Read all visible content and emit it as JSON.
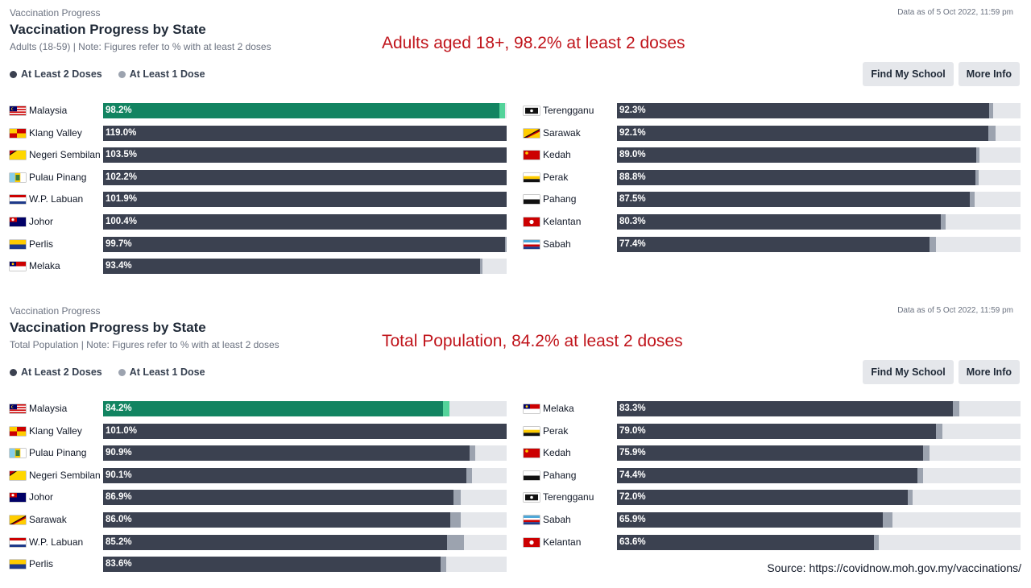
{
  "colors": {
    "dose2": "#3b4150",
    "dose1": "#9ca3af",
    "highlight_dose2": "#128461",
    "highlight_dose1": "#53d39a",
    "track": "#e5e7eb",
    "annotation": "#c0141b"
  },
  "panels": [
    {
      "eyebrow": "Vaccination Progress",
      "title": "Vaccination Progress by State",
      "subtitle": "Adults (18-59) | Note: Figures refer to % with at least 2 doses",
      "as_of": "Data as of 5 Oct 2022, 11:59 pm",
      "annotation": "Adults aged 18+, 98.2% at least 2 doses",
      "legend": [
        {
          "label": "At Least 2 Doses",
          "color": "#3b4150"
        },
        {
          "label": "At Least 1 Dose",
          "color": "#9ca3af"
        }
      ],
      "buttons": [
        {
          "label": "Find My School",
          "icon": "school-icon"
        },
        {
          "label": "More Info",
          "icon": "info-icon"
        }
      ]
    },
    {
      "eyebrow": "Vaccination Progress",
      "title": "Vaccination Progress by State",
      "subtitle": "Total Population | Note: Figures refer to % with at least 2 doses",
      "as_of": "Data as of 5 Oct 2022, 11:59 pm",
      "annotation": "Total Population, 84.2% at least 2 doses",
      "legend": [
        {
          "label": "At Least 2 Doses",
          "color": "#3b4150"
        },
        {
          "label": "At Least 1 Dose",
          "color": "#9ca3af"
        }
      ],
      "buttons": [
        {
          "label": "Find My School",
          "icon": "school-icon"
        },
        {
          "label": "More Info",
          "icon": "info-icon"
        }
      ]
    }
  ],
  "chart_data": [
    {
      "type": "bar",
      "orientation": "horizontal",
      "title": "Vaccination Progress by State",
      "subtitle": "Adults (18-59) | Note: Figures refer to % with at least 2 doses",
      "xlim": [
        0,
        100
      ],
      "series": [
        {
          "name": "At Least 2 Doses"
        },
        {
          "name": "At Least 1 Dose"
        }
      ],
      "columns": [
        [
          {
            "state": "Malaysia",
            "flag": "malaysia",
            "label": "98.2%",
            "dose2": 98.2,
            "dose1": 99.6,
            "highlight": true
          },
          {
            "state": "Klang Valley",
            "flag": "klang-valley",
            "label": "119.0%",
            "dose2": 119.0,
            "dose1": 119.5
          },
          {
            "state": "Negeri Sembilan",
            "flag": "negeri-sembilan",
            "label": "103.5%",
            "dose2": 103.5,
            "dose1": 104.0
          },
          {
            "state": "Pulau Pinang",
            "flag": "pulau-pinang",
            "label": "102.2%",
            "dose2": 102.2,
            "dose1": 102.8
          },
          {
            "state": "W.P. Labuan",
            "flag": "labuan",
            "label": "101.9%",
            "dose2": 101.9,
            "dose1": 102.9
          },
          {
            "state": "Johor",
            "flag": "johor",
            "label": "100.4%",
            "dose2": 100.4,
            "dose1": 101.0
          },
          {
            "state": "Perlis",
            "flag": "perlis",
            "label": "99.7%",
            "dose2": 99.7,
            "dose1": 100.1
          },
          {
            "state": "Melaka",
            "flag": "melaka",
            "label": "93.4%",
            "dose2": 93.4,
            "dose1": 94.1
          }
        ],
        [
          {
            "state": "Terengganu",
            "flag": "terengganu",
            "label": "92.3%",
            "dose2": 92.3,
            "dose1": 93.3
          },
          {
            "state": "Sarawak",
            "flag": "sarawak",
            "label": "92.1%",
            "dose2": 92.1,
            "dose1": 93.9
          },
          {
            "state": "Kedah",
            "flag": "kedah",
            "label": "89.0%",
            "dose2": 89.0,
            "dose1": 89.9
          },
          {
            "state": "Perak",
            "flag": "perak",
            "label": "88.8%",
            "dose2": 88.8,
            "dose1": 89.7
          },
          {
            "state": "Pahang",
            "flag": "pahang",
            "label": "87.5%",
            "dose2": 87.5,
            "dose1": 88.6
          },
          {
            "state": "Kelantan",
            "flag": "kelantan",
            "label": "80.3%",
            "dose2": 80.3,
            "dose1": 81.4
          },
          {
            "state": "Sabah",
            "flag": "sabah",
            "label": "77.4%",
            "dose2": 77.4,
            "dose1": 79.0
          }
        ]
      ]
    },
    {
      "type": "bar",
      "orientation": "horizontal",
      "title": "Vaccination Progress by State",
      "subtitle": "Total Population | Note: Figures refer to % with at least 2 doses",
      "xlim": [
        0,
        100
      ],
      "series": [
        {
          "name": "At Least 2 Doses"
        },
        {
          "name": "At Least 1 Dose"
        }
      ],
      "columns": [
        [
          {
            "state": "Malaysia",
            "flag": "malaysia",
            "label": "84.2%",
            "dose2": 84.2,
            "dose1": 85.8,
            "highlight": true
          },
          {
            "state": "Klang Valley",
            "flag": "klang-valley",
            "label": "101.0%",
            "dose2": 101.0,
            "dose1": 101.5
          },
          {
            "state": "Pulau Pinang",
            "flag": "pulau-pinang",
            "label": "90.9%",
            "dose2": 90.9,
            "dose1": 92.2
          },
          {
            "state": "Negeri Sembilan",
            "flag": "negeri-sembilan",
            "label": "90.1%",
            "dose2": 90.1,
            "dose1": 91.5
          },
          {
            "state": "Johor",
            "flag": "johor",
            "label": "86.9%",
            "dose2": 86.9,
            "dose1": 88.6
          },
          {
            "state": "Sarawak",
            "flag": "sarawak",
            "label": "86.0%",
            "dose2": 86.0,
            "dose1": 88.7
          },
          {
            "state": "W.P. Labuan",
            "flag": "labuan",
            "label": "85.2%",
            "dose2": 85.2,
            "dose1": 89.5
          },
          {
            "state": "Perlis",
            "flag": "perlis",
            "label": "83.6%",
            "dose2": 83.6,
            "dose1": 85.0
          }
        ],
        [
          {
            "state": "Melaka",
            "flag": "melaka",
            "label": "83.3%",
            "dose2": 83.3,
            "dose1": 84.8
          },
          {
            "state": "Perak",
            "flag": "perak",
            "label": "79.0%",
            "dose2": 79.0,
            "dose1": 80.6
          },
          {
            "state": "Kedah",
            "flag": "kedah",
            "label": "75.9%",
            "dose2": 75.9,
            "dose1": 77.4
          },
          {
            "state": "Pahang",
            "flag": "pahang",
            "label": "74.4%",
            "dose2": 74.4,
            "dose1": 75.9
          },
          {
            "state": "Terengganu",
            "flag": "terengganu",
            "label": "72.0%",
            "dose2": 72.0,
            "dose1": 73.3
          },
          {
            "state": "Sabah",
            "flag": "sabah",
            "label": "65.9%",
            "dose2": 65.9,
            "dose1": 68.3
          },
          {
            "state": "Kelantan",
            "flag": "kelantan",
            "label": "63.6%",
            "dose2": 63.6,
            "dose1": 64.8
          }
        ]
      ]
    }
  ],
  "footer": {
    "source": "Source:  https://covidnow.moh.gov.my/vaccinations/"
  }
}
